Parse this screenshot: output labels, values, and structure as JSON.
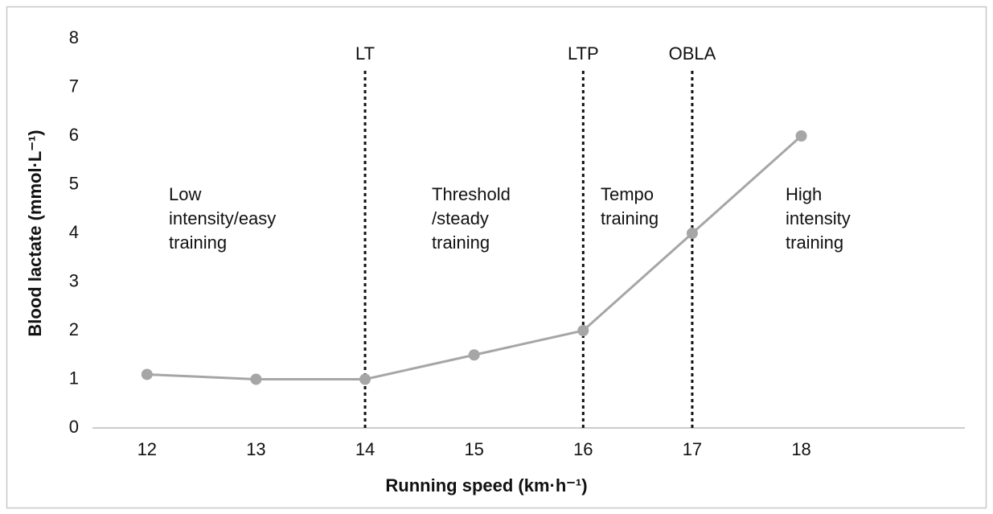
{
  "chart_data": {
    "type": "line",
    "x_label": "Running speed (km·h⁻¹)",
    "y_label": "Blood lactate (mmol·L⁻¹)",
    "x": [
      12,
      13,
      14,
      15,
      16,
      17,
      18
    ],
    "series": [
      {
        "color": "#a6a6a6",
        "values": [
          1.1,
          1,
          1,
          1.5,
          2,
          4,
          6
        ]
      }
    ],
    "xlim": [
      11.5,
      19.5
    ],
    "xticks": [
      12,
      13,
      14,
      15,
      16,
      17,
      18
    ],
    "ylim": [
      0,
      8
    ],
    "yticks": [
      0,
      1,
      2,
      3,
      4,
      5,
      6,
      7,
      8
    ],
    "grid": false,
    "vlines": [
      {
        "x": 14,
        "label": "LT"
      },
      {
        "x": 16,
        "label": "LTP"
      },
      {
        "x": 17,
        "label": "OBLA"
      }
    ],
    "annotations": [
      {
        "lines": [
          "Low",
          "intensity/easy",
          "training"
        ]
      },
      {
        "lines": [
          "Threshold",
          "/steady",
          "training"
        ]
      },
      {
        "lines": [
          "Tempo",
          "training"
        ]
      },
      {
        "lines": [
          "High",
          "intensity",
          "training"
        ]
      }
    ]
  }
}
